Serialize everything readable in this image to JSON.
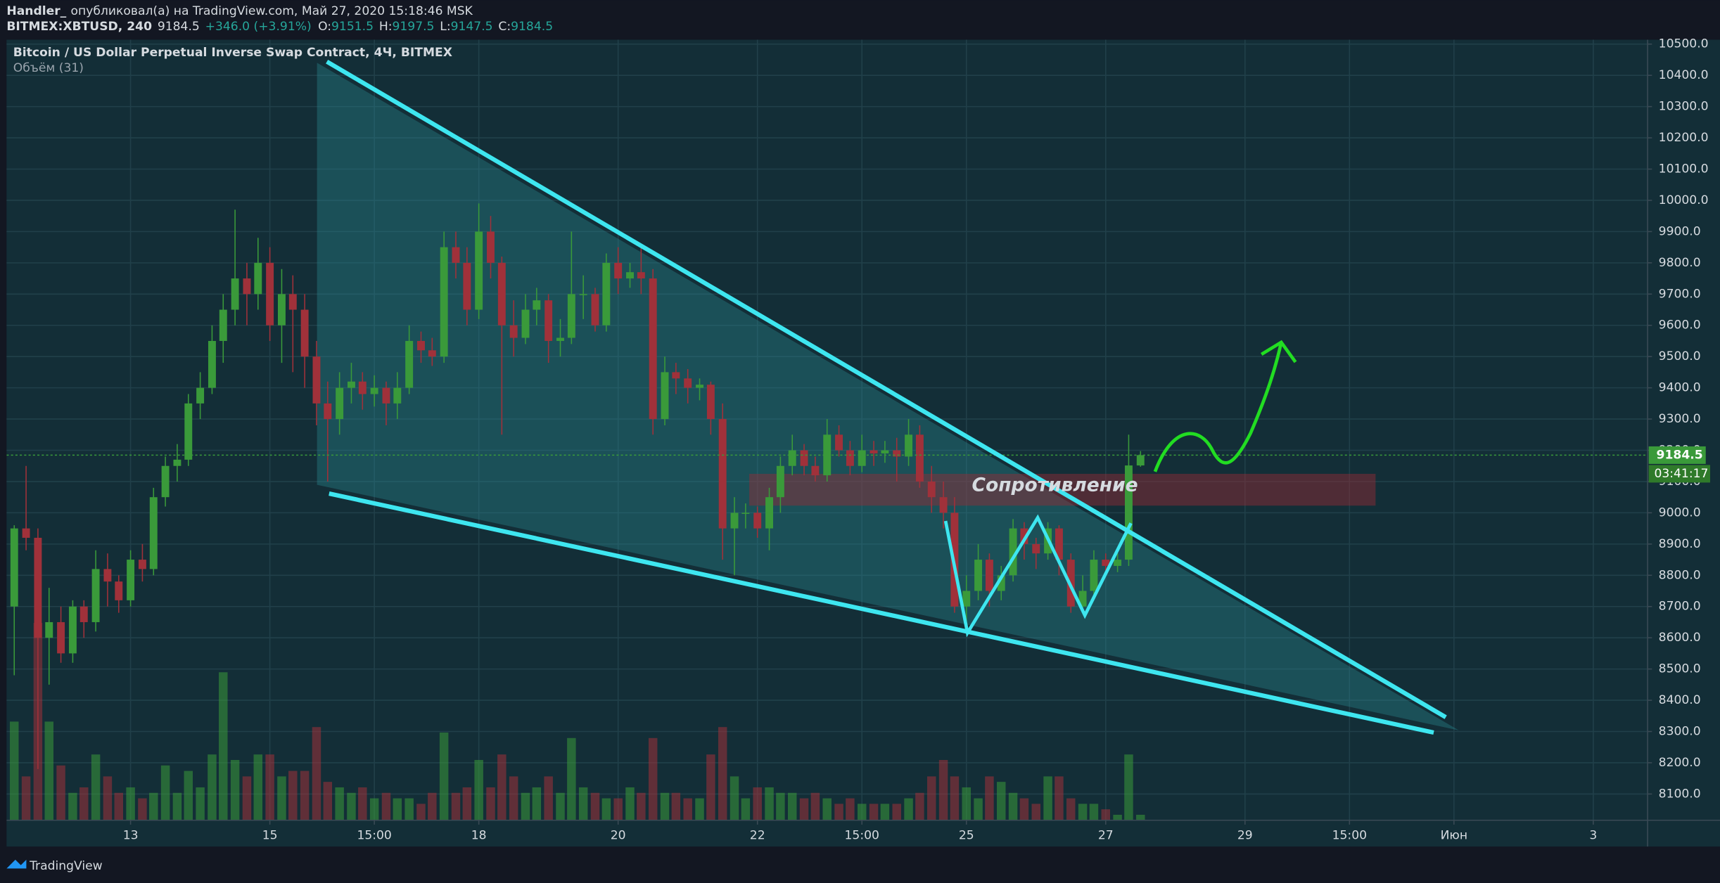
{
  "header": {
    "author": "Handler_",
    "published": "опубликовал(а) на TradingView.com, Май 27, 2020 15:18:46 MSK",
    "symbol": "BITMEX:XBTUSD, 240",
    "last": "9184.5",
    "change": "+346.0 (+3.91%)",
    "ohlc": [
      [
        "O:",
        "9151.5"
      ],
      [
        "H:",
        "9197.5"
      ],
      [
        "L:",
        "9147.5"
      ],
      [
        "C:",
        "9184.5"
      ]
    ]
  },
  "footer": {
    "brand": "TradingView"
  },
  "chart_data": {
    "type": "candlestick",
    "title": "Bitcoin / US Dollar Perpetual Inverse Swap Contract, 4Ч, BITMEX",
    "volume_label": "Объём (31)",
    "annotation": "Сопротивление",
    "countdown": "03:41:17",
    "last_price": 9184.5,
    "up_color": "#3a9a3a",
    "down_color": "#a0313a",
    "grid": true,
    "x": [
      11.33,
      11.5,
      11.67,
      11.83,
      12,
      12.17,
      12.33,
      12.5,
      12.67,
      12.83,
      13,
      13.17,
      13.33,
      13.5,
      13.67,
      13.83,
      14,
      14.17,
      14.33,
      14.5,
      14.67,
      14.83,
      15,
      15.17,
      15.33,
      15.5,
      15.67,
      15.83,
      16,
      16.17,
      16.33,
      16.5,
      16.67,
      16.83,
      17,
      17.17,
      17.33,
      17.5,
      17.67,
      17.83,
      18,
      18.17,
      18.33,
      18.5,
      18.67,
      18.83,
      19,
      19.17,
      19.33,
      19.5,
      19.67,
      19.83,
      20,
      20.17,
      20.33,
      20.5,
      20.67,
      20.83,
      21,
      21.17,
      21.33,
      21.5,
      21.67,
      21.83,
      22,
      22.17,
      22.33,
      22.5,
      22.67,
      22.83,
      23,
      23.17,
      23.33,
      23.5,
      23.67,
      23.83,
      24,
      24.17,
      24.33,
      24.5,
      24.67,
      24.83,
      25,
      25.17,
      25.33,
      25.5,
      25.67,
      25.83,
      26,
      26.17,
      26.33,
      26.5,
      26.67,
      26.83,
      27,
      27.17,
      27.33,
      27.5
    ],
    "ohlc": [
      [
        8700,
        8960,
        8480,
        8950
      ],
      [
        8950,
        9150,
        8880,
        8920
      ],
      [
        8920,
        8950,
        8180,
        8600
      ],
      [
        8600,
        8760,
        8450,
        8650
      ],
      [
        8650,
        8700,
        8520,
        8550
      ],
      [
        8550,
        8720,
        8520,
        8700
      ],
      [
        8700,
        8720,
        8600,
        8650
      ],
      [
        8650,
        8880,
        8620,
        8820
      ],
      [
        8820,
        8870,
        8700,
        8780
      ],
      [
        8780,
        8800,
        8680,
        8720
      ],
      [
        8720,
        8880,
        8700,
        8850
      ],
      [
        8850,
        8900,
        8780,
        8820
      ],
      [
        8820,
        9080,
        8800,
        9050
      ],
      [
        9050,
        9180,
        9020,
        9150
      ],
      [
        9150,
        9220,
        9100,
        9170
      ],
      [
        9170,
        9380,
        9150,
        9350
      ],
      [
        9350,
        9450,
        9300,
        9400
      ],
      [
        9400,
        9600,
        9380,
        9550
      ],
      [
        9550,
        9700,
        9480,
        9650
      ],
      [
        9650,
        9970,
        9600,
        9750
      ],
      [
        9750,
        9800,
        9600,
        9700
      ],
      [
        9700,
        9880,
        9650,
        9800
      ],
      [
        9800,
        9850,
        9550,
        9600
      ],
      [
        9600,
        9780,
        9480,
        9700
      ],
      [
        9700,
        9760,
        9450,
        9650
      ],
      [
        9650,
        9700,
        9400,
        9500
      ],
      [
        9500,
        9550,
        9280,
        9350
      ],
      [
        9350,
        9420,
        9100,
        9300
      ],
      [
        9300,
        9450,
        9250,
        9400
      ],
      [
        9400,
        9480,
        9350,
        9420
      ],
      [
        9420,
        9450,
        9330,
        9380
      ],
      [
        9380,
        9440,
        9340,
        9400
      ],
      [
        9400,
        9420,
        9280,
        9350
      ],
      [
        9350,
        9450,
        9300,
        9400
      ],
      [
        9400,
        9600,
        9380,
        9550
      ],
      [
        9550,
        9580,
        9480,
        9520
      ],
      [
        9520,
        9560,
        9470,
        9500
      ],
      [
        9500,
        9900,
        9480,
        9850
      ],
      [
        9850,
        9900,
        9750,
        9800
      ],
      [
        9800,
        9850,
        9600,
        9650
      ],
      [
        9650,
        9990,
        9620,
        9900
      ],
      [
        9900,
        9950,
        9750,
        9800
      ],
      [
        9800,
        9820,
        9250,
        9600
      ],
      [
        9600,
        9680,
        9500,
        9560
      ],
      [
        9560,
        9700,
        9540,
        9650
      ],
      [
        9650,
        9720,
        9600,
        9680
      ],
      [
        9680,
        9700,
        9480,
        9550
      ],
      [
        9550,
        9620,
        9500,
        9560
      ],
      [
        9560,
        9900,
        9540,
        9700
      ],
      [
        9700,
        9760,
        9620,
        9700
      ],
      [
        9700,
        9720,
        9580,
        9600
      ],
      [
        9600,
        9830,
        9580,
        9800
      ],
      [
        9800,
        9850,
        9700,
        9750
      ],
      [
        9750,
        9800,
        9720,
        9770
      ],
      [
        9770,
        9850,
        9700,
        9750
      ],
      [
        9750,
        9780,
        9250,
        9300
      ],
      [
        9300,
        9500,
        9280,
        9450
      ],
      [
        9450,
        9480,
        9380,
        9430
      ],
      [
        9430,
        9460,
        9350,
        9400
      ],
      [
        9400,
        9430,
        9360,
        9410
      ],
      [
        9410,
        9420,
        9250,
        9300
      ],
      [
        9300,
        9350,
        8850,
        8950
      ],
      [
        8950,
        9050,
        8800,
        9000
      ],
      [
        9000,
        9030,
        8950,
        9000
      ],
      [
        9000,
        9020,
        8920,
        8950
      ],
      [
        8950,
        9080,
        8880,
        9050
      ],
      [
        9050,
        9180,
        9000,
        9150
      ],
      [
        9150,
        9250,
        9120,
        9200
      ],
      [
        9200,
        9220,
        9120,
        9150
      ],
      [
        9150,
        9180,
        9100,
        9120
      ],
      [
        9120,
        9300,
        9100,
        9250
      ],
      [
        9250,
        9280,
        9180,
        9200
      ],
      [
        9200,
        9230,
        9120,
        9150
      ],
      [
        9150,
        9250,
        9130,
        9200
      ],
      [
        9200,
        9230,
        9150,
        9190
      ],
      [
        9190,
        9230,
        9160,
        9200
      ],
      [
        9200,
        9240,
        9100,
        9180
      ],
      [
        9180,
        9300,
        9150,
        9250
      ],
      [
        9250,
        9280,
        9080,
        9100
      ],
      [
        9100,
        9150,
        9000,
        9050
      ],
      [
        9050,
        9100,
        8950,
        9000
      ],
      [
        9000,
        9050,
        8680,
        8700
      ],
      [
        8700,
        8800,
        8650,
        8750
      ],
      [
        8750,
        8900,
        8720,
        8850
      ],
      [
        8850,
        8870,
        8700,
        8750
      ],
      [
        8750,
        8830,
        8720,
        8800
      ],
      [
        8800,
        8980,
        8780,
        8950
      ],
      [
        8950,
        8970,
        8850,
        8900
      ],
      [
        8900,
        8920,
        8820,
        8870
      ],
      [
        8870,
        8970,
        8850,
        8950
      ],
      [
        8950,
        8960,
        8800,
        8850
      ],
      [
        8850,
        8870,
        8680,
        8700
      ],
      [
        8700,
        8800,
        8680,
        8750
      ],
      [
        8750,
        8880,
        8730,
        8850
      ],
      [
        8850,
        8870,
        8800,
        8830
      ],
      [
        8830,
        8870,
        8810,
        8850
      ],
      [
        8850,
        9250,
        8830,
        9151.5
      ],
      [
        9151.5,
        9197.5,
        9147.5,
        9184.5
      ]
    ],
    "volume": [
      90,
      40,
      180,
      90,
      50,
      25,
      30,
      60,
      40,
      25,
      30,
      20,
      25,
      50,
      25,
      45,
      30,
      60,
      135,
      55,
      40,
      60,
      60,
      40,
      45,
      45,
      85,
      35,
      30,
      25,
      30,
      20,
      25,
      20,
      20,
      15,
      25,
      80,
      25,
      30,
      55,
      30,
      60,
      40,
      25,
      30,
      40,
      25,
      75,
      30,
      25,
      20,
      20,
      30,
      25,
      75,
      25,
      25,
      20,
      20,
      60,
      85,
      40,
      20,
      30,
      30,
      25,
      25,
      20,
      25,
      20,
      15,
      20,
      15,
      15,
      15,
      15,
      20,
      25,
      40,
      55,
      40,
      30,
      20,
      40,
      35,
      25,
      20,
      15,
      40,
      40,
      20,
      15,
      15,
      10,
      5,
      60,
      5
    ],
    "xlim": [
      11.22,
      34.78
    ],
    "xticks": [
      13,
      15,
      {
        "value": 16.5,
        "label": "15:00"
      },
      18,
      20,
      22,
      {
        "value": 23.5,
        "label": "15:00"
      },
      25,
      27,
      29,
      {
        "value": 30.5,
        "label": "15:00"
      },
      {
        "value": 32,
        "label": "Июн"
      },
      {
        "value": 34,
        "label": "3"
      }
    ],
    "ylim": [
      8016,
      10514
    ],
    "yticks": [
      {
        "value": 10500,
        "label": "10500.0"
      },
      {
        "value": 10400,
        "label": "10400.0"
      },
      {
        "value": 10300,
        "label": "10300.0"
      },
      {
        "value": 10200,
        "label": "10200.0"
      },
      {
        "value": 10100,
        "label": "10100.0"
      },
      {
        "value": 10000,
        "label": "10000.0"
      },
      {
        "value": 9900,
        "label": "9900.0"
      },
      {
        "value": 9800,
        "label": "9800.0"
      },
      {
        "value": 9700,
        "label": "9700.0"
      },
      {
        "value": 9600,
        "label": "9600.0"
      },
      {
        "value": 9500,
        "label": "9500.0"
      },
      {
        "value": 9400,
        "label": "9400.0"
      },
      {
        "value": 9300,
        "label": "9300.0"
      },
      {
        "value": 9200,
        "label": "9200.0"
      },
      {
        "value": 9100,
        "label": "9100.0"
      },
      {
        "value": 9000,
        "label": "9000.0"
      },
      {
        "value": 8900,
        "label": "8900.0"
      },
      {
        "value": 8800,
        "label": "8800.0"
      },
      {
        "value": 8700,
        "label": "8700.0"
      },
      {
        "value": 8600,
        "label": "8600.0"
      },
      {
        "value": 8500,
        "label": "8500.0"
      },
      {
        "value": 8400,
        "label": "8400.0"
      },
      {
        "value": 8300,
        "label": "8300.0"
      },
      {
        "value": 8200,
        "label": "8200.0"
      },
      {
        "value": 8100,
        "label": "8100.0"
      }
    ]
  }
}
